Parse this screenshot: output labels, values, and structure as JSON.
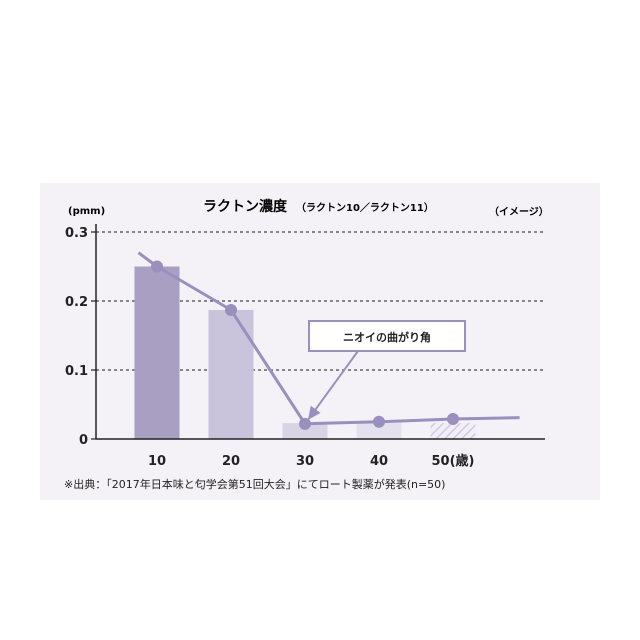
{
  "chart_data": {
    "type": "bar",
    "title": "ラクトン濃度",
    "subtitle": "（ラクトン10／ラクトン11）",
    "note": "（イメージ）",
    "ylabel": "(pmm)",
    "categories": [
      "10",
      "20",
      "30",
      "40",
      "50(歳)"
    ],
    "values": [
      0.25,
      0.187,
      0.023,
      0.023,
      0.023
    ],
    "bar_styles": [
      "solid",
      "solid",
      "solid",
      "solid",
      "hatched"
    ],
    "line": {
      "points": [
        {
          "x": 10,
          "y": 0.25
        },
        {
          "x": 20,
          "y": 0.187
        },
        {
          "x": 30,
          "y": 0.022
        },
        {
          "x": 40,
          "y": 0.025
        },
        {
          "x": 50,
          "y": 0.029
        }
      ],
      "start": {
        "x": 7.5,
        "y": 0.27
      },
      "end": {
        "x": 59,
        "y": 0.031
      }
    },
    "ylim": [
      0,
      0.3
    ],
    "yticks": [
      "0",
      "0.1",
      "0.2",
      "0.3"
    ],
    "ytick_values": [
      0,
      0.1,
      0.2,
      0.3
    ],
    "grid": true,
    "annotation": {
      "text": "ニオイの曲がり角",
      "points_to": {
        "x": 30,
        "y": 0.022
      }
    },
    "source": "※出典：「2017年日本味と匂学会第51回大会」にてロート製薬が発表(n=50)",
    "colors": {
      "bar_10": "#a99fc2",
      "bar_20": "#c9c3dc",
      "bar_30": "#d8d4e6",
      "bar_40": "#e4e1ee",
      "bar_50": "#e6e3ef",
      "line": "#9a8fbd",
      "marker": "#9a8fbd",
      "grid": "#444444",
      "axis": "#222222",
      "panel": "#f4f2f7"
    }
  }
}
